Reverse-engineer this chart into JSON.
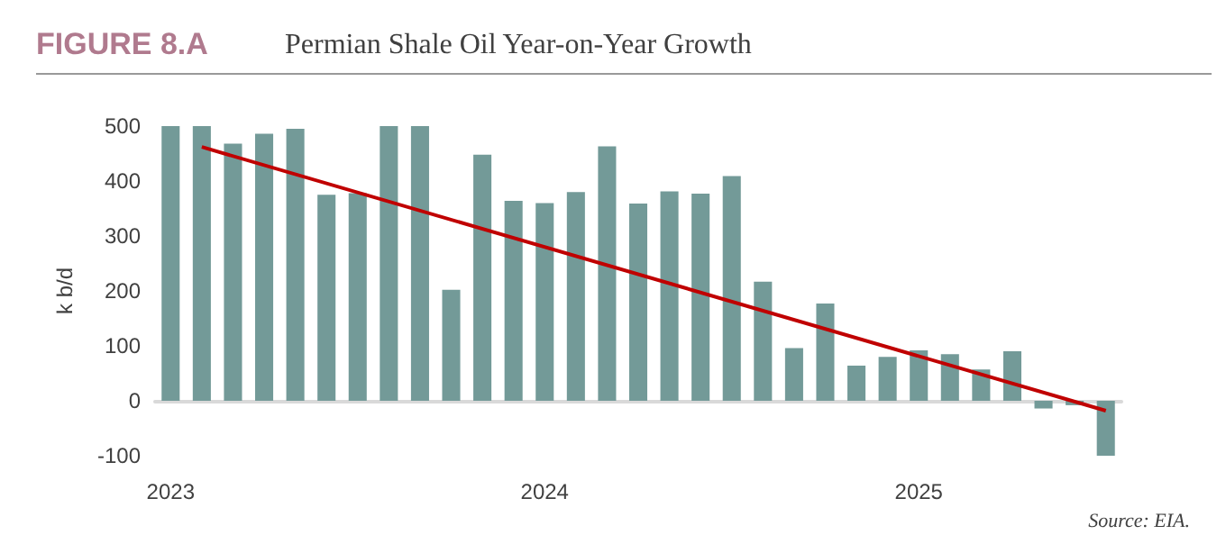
{
  "chart_data": {
    "type": "bar",
    "title": "FIGURE 8.A",
    "subtitle": "Permian Shale Oil Year-on-Year Growth",
    "ylabel": "k b/d",
    "annotations": [
      "Source: EIA."
    ],
    "categories": [
      "2023",
      null,
      null,
      null,
      null,
      null,
      null,
      null,
      null,
      null,
      null,
      null,
      "2024",
      null,
      null,
      null,
      null,
      null,
      null,
      null,
      null,
      null,
      null,
      null,
      "2025",
      null,
      null,
      null,
      null,
      null,
      null
    ],
    "series": [
      {
        "color": "#739a98",
        "values": [
          500,
          500,
          468,
          486,
          495,
          375,
          378,
          500,
          500,
          202,
          448,
          364,
          360,
          380,
          463,
          359,
          381,
          377,
          409,
          217,
          96,
          177,
          64,
          80,
          92,
          85,
          57,
          90,
          -14,
          -8,
          -100
        ]
      },
      {
        "type": "line",
        "color": "#c00000",
        "values": [
          null,
          462,
          null,
          null,
          null,
          null,
          null,
          null,
          null,
          null,
          null,
          null,
          null,
          null,
          null,
          null,
          null,
          null,
          null,
          null,
          null,
          null,
          null,
          null,
          null,
          null,
          null,
          null,
          null,
          null,
          -18
        ]
      }
    ],
    "ylim": [
      -100,
      500
    ],
    "yticks": [
      -100,
      0,
      100,
      200,
      300,
      400,
      500
    ],
    "marker": "none"
  }
}
